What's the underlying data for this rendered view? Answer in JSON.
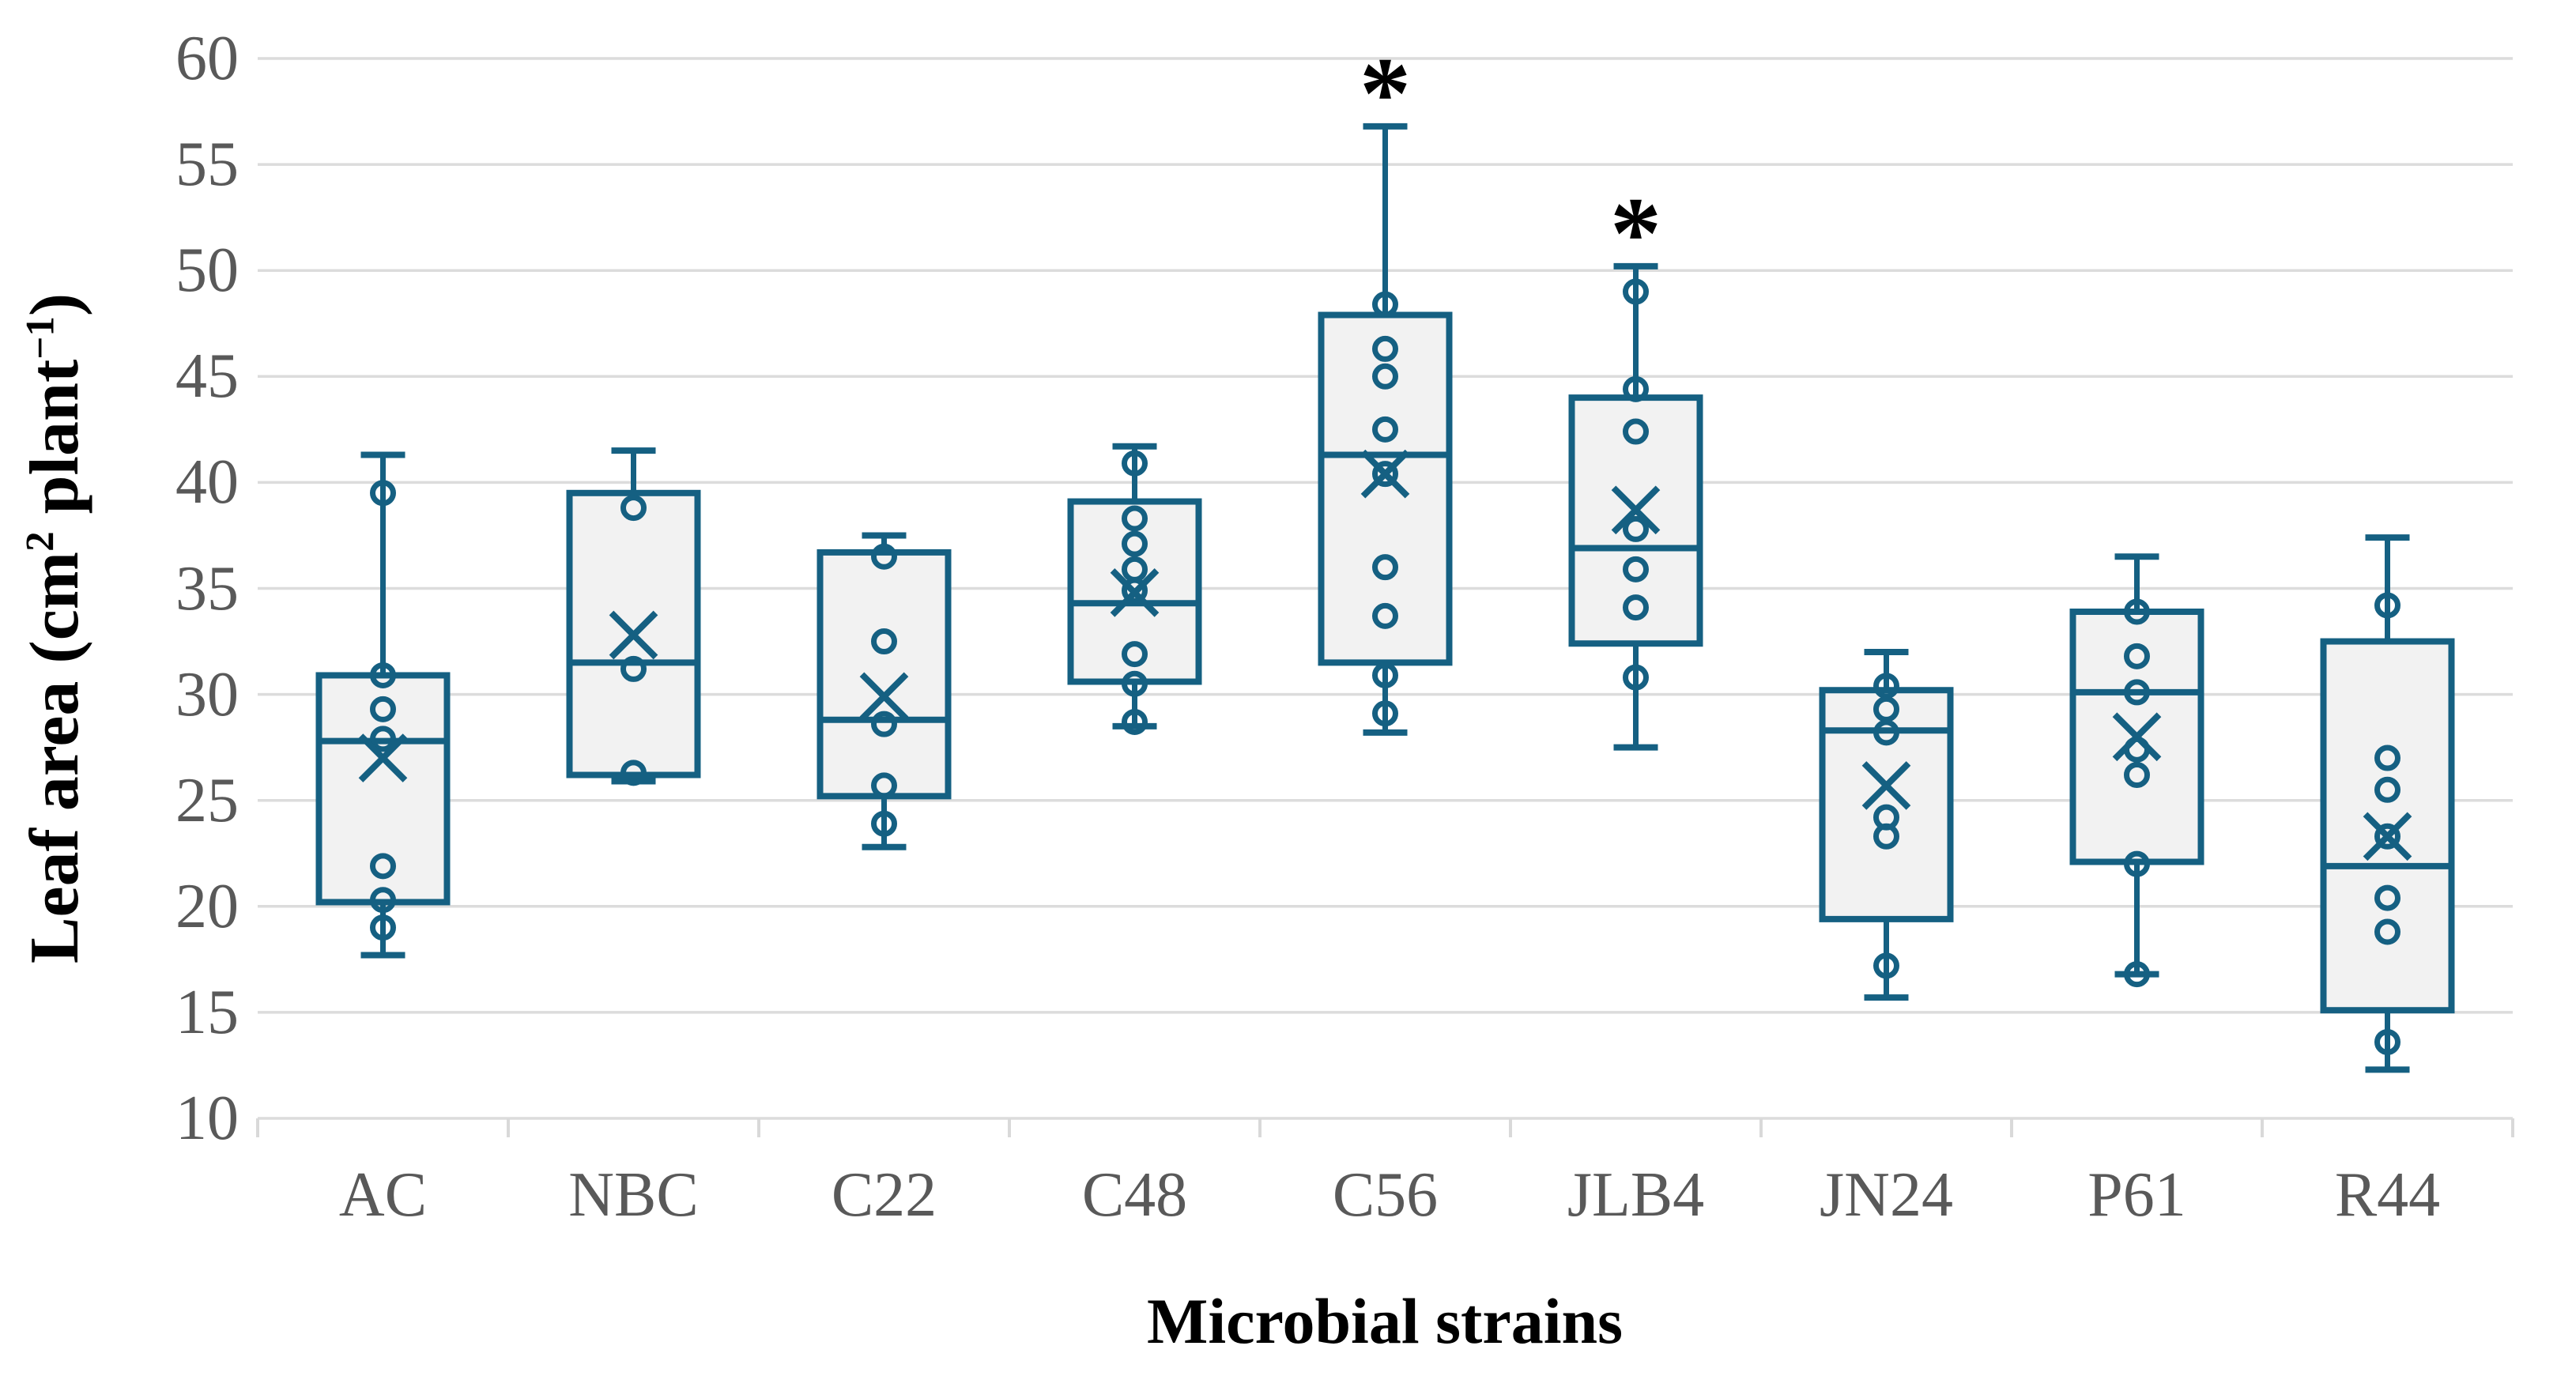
{
  "chart_data": {
    "type": "boxplot",
    "title": "",
    "xlabel": "Microbial strains",
    "ylabel": "Leaf area (cm² plant⁻¹)",
    "ylabel_parts": {
      "t1": "Leaf area (cm",
      "sup1": "2",
      "t2": " plant",
      "sup2": "−1",
      "t3": ")"
    },
    "ylim": [
      10,
      60
    ],
    "yticks": [
      10,
      15,
      20,
      25,
      30,
      35,
      40,
      45,
      50,
      55,
      60
    ],
    "grid": "horizontal gridlines at every 5 units",
    "legend": "none",
    "significance_marker": "*",
    "significant_strains": [
      "C56",
      "JLB4"
    ],
    "categories": [
      "AC",
      "NBC",
      "C22",
      "C48",
      "C56",
      "JLB4",
      "JN24",
      "P61",
      "R44"
    ],
    "boxes": [
      {
        "strain": "AC",
        "whisker_low": 17.7,
        "q1": 20.2,
        "median": 27.8,
        "q3": 30.9,
        "whisker_high": 41.3,
        "mean": 27.0,
        "points": [
          39.5,
          30.9,
          29.3,
          27.9,
          21.9,
          20.3,
          19.0
        ],
        "asterisk": null
      },
      {
        "strain": "NBC",
        "whisker_low": 25.9,
        "q1": 26.2,
        "median": 31.5,
        "q3": 39.5,
        "whisker_high": 41.5,
        "mean": 32.8,
        "points": [
          38.8,
          31.2,
          26.3
        ],
        "asterisk": null
      },
      {
        "strain": "C22",
        "whisker_low": 22.8,
        "q1": 25.2,
        "median": 28.8,
        "q3": 36.7,
        "whisker_high": 37.5,
        "mean": 29.9,
        "points": [
          36.5,
          32.5,
          28.6,
          25.7,
          23.9
        ],
        "asterisk": null
      },
      {
        "strain": "C48",
        "whisker_low": 28.5,
        "q1": 30.6,
        "median": 34.3,
        "q3": 39.1,
        "whisker_high": 41.7,
        "mean": 34.8,
        "points": [
          40.9,
          38.3,
          37.1,
          35.9,
          34.9,
          31.9,
          30.5,
          28.7
        ],
        "asterisk": null
      },
      {
        "strain": "C56",
        "whisker_low": 28.2,
        "q1": 31.5,
        "median": 41.3,
        "q3": 47.9,
        "whisker_high": 56.8,
        "mean": 40.4,
        "points": [
          48.4,
          46.3,
          45.0,
          42.5,
          40.4,
          36.0,
          33.7,
          30.9,
          29.1
        ],
        "asterisk": 58.6
      },
      {
        "strain": "JLB4",
        "whisker_low": 27.5,
        "q1": 32.4,
        "median": 36.9,
        "q3": 44.0,
        "whisker_high": 50.2,
        "mean": 38.7,
        "points": [
          49.0,
          44.4,
          42.4,
          37.8,
          35.9,
          34.1,
          30.8
        ],
        "asterisk": 52.0
      },
      {
        "strain": "JN24",
        "whisker_low": 15.7,
        "q1": 19.4,
        "median": 28.3,
        "q3": 30.2,
        "whisker_high": 32.0,
        "mean": 25.7,
        "points": [
          30.4,
          29.3,
          28.2,
          24.2,
          23.3,
          17.2
        ],
        "asterisk": null
      },
      {
        "strain": "P61",
        "whisker_low": 16.8,
        "q1": 22.1,
        "median": 30.1,
        "q3": 33.9,
        "whisker_high": 36.5,
        "mean": 28.0,
        "points": [
          33.9,
          31.8,
          30.1,
          27.4,
          26.2,
          22.0,
          16.8
        ],
        "asterisk": null
      },
      {
        "strain": "R44",
        "whisker_low": 12.3,
        "q1": 15.1,
        "median": 21.9,
        "q3": 32.5,
        "whisker_high": 37.4,
        "mean": 23.3,
        "points": [
          34.2,
          27.0,
          25.5,
          23.3,
          20.4,
          18.8,
          13.6
        ],
        "asterisk": null
      }
    ],
    "style": {
      "box_stroke": "#156082",
      "box_fill": "#F2F2F2",
      "gridline_color": "#DCDCDC",
      "axis_tick_color": "#D9D9D9",
      "tick_label_color": "#595959",
      "title_color": "#000000",
      "asterisk_color": "#000000"
    }
  }
}
